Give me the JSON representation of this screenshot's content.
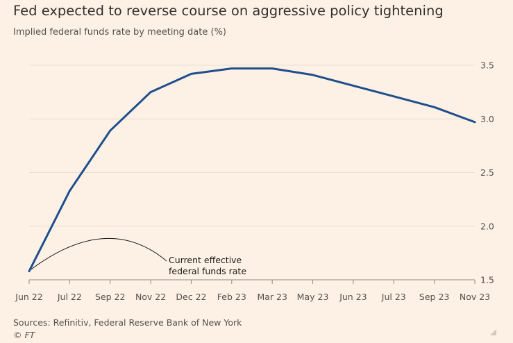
{
  "header": {
    "title": "Fed expected to reverse course on aggressive policy tightening",
    "subtitle": "Implied federal funds rate by meeting date (%)"
  },
  "footer": {
    "source": "Sources: Refinitiv, Federal Reserve Bank of New York",
    "copyright": "© FT"
  },
  "colors": {
    "background": "#FDF1E6",
    "series_line": "#1F4E8C",
    "gridline": "#E9DED3",
    "text": "#33302E"
  },
  "chart_data": {
    "type": "line",
    "title": "Fed expected to reverse course on aggressive policy tightening",
    "subtitle": "Implied federal funds rate by meeting date (%)",
    "xlabel": "",
    "ylabel": "",
    "categories": [
      "Jun 22",
      "Jul 22",
      "Sep 22",
      "Nov 22",
      "Dec 22",
      "Feb 23",
      "Mar 23",
      "May 23",
      "Jun 23",
      "Jul 23",
      "Sep 23",
      "Nov 23"
    ],
    "series": [
      {
        "values": [
          1.58,
          2.33,
          2.89,
          3.25,
          3.42,
          3.47,
          3.47,
          3.41,
          3.31,
          3.21,
          3.11,
          2.97
        ]
      }
    ],
    "ylim": [
      1.5,
      3.5
    ],
    "yticks": [
      "1.5",
      "2.0",
      "2.5",
      "3.0",
      "3.5"
    ],
    "y_axis_position": "right",
    "grid": true,
    "legend": "none",
    "annotations": [
      {
        "lines": [
          "Current effective",
          "federal funds rate"
        ],
        "points_to": {
          "x": "Jun 22",
          "y": 1.58
        }
      }
    ]
  }
}
